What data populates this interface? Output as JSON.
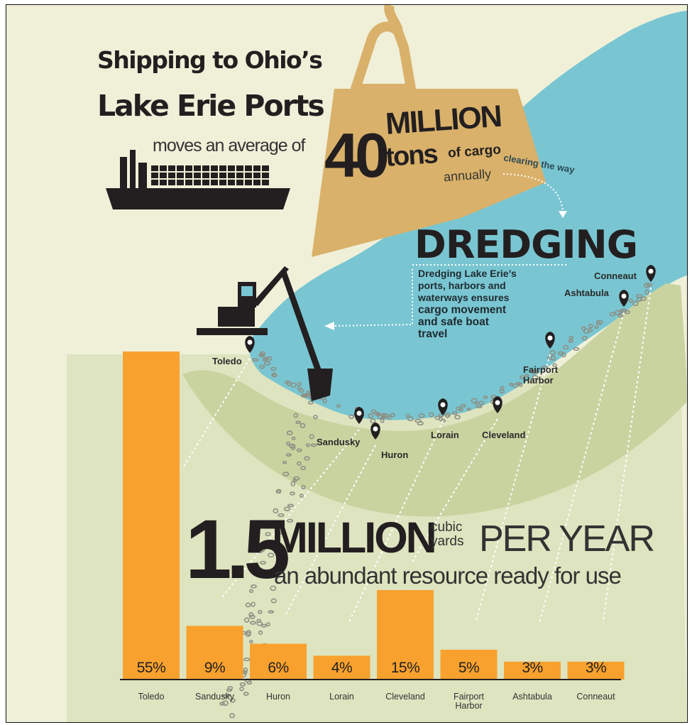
{
  "header": {
    "title_line1": "Shipping to Ohio’s",
    "title_line2": "Lake Erie Ports",
    "moves": "moves an average of",
    "big_number": "40",
    "million": "MILLION",
    "tons": "tons",
    "of_cargo": "of cargo",
    "annually": "annually",
    "clearing": "clearing the way"
  },
  "dredging": {
    "title": "DREDGING",
    "lines": [
      "Dredging Lake Erie’s",
      "ports, harbors and",
      "waterways ensures",
      "cargo movement",
      "and safe boat",
      "travel"
    ]
  },
  "volume": {
    "number": "1.5",
    "million": "MILLION",
    "cubic": "cubic",
    "yards": "yards",
    "per_year": "PER YEAR",
    "subtitle": "an abundant resource ready for use"
  },
  "colors": {
    "bar": "#f9a12e",
    "lake": "#79c6d2",
    "land": "#c9d3a0",
    "bg": "#f0f0d9",
    "weight": "#d9b16a",
    "ink": "#231f20"
  },
  "icons": [
    "ship-icon",
    "weight-icon",
    "excavator-icon",
    "map-pin-icon"
  ],
  "chart_data": {
    "type": "bar",
    "title": "",
    "xlabel": "",
    "ylabel": "",
    "categories": [
      "Toledo",
      "Sandusky",
      "Huron",
      "Lorain",
      "Cleveland",
      "Fairport Harbor",
      "Ashtabula",
      "Conneaut"
    ],
    "values": [
      55,
      9,
      6,
      4,
      15,
      5,
      3,
      3
    ],
    "value_labels": [
      "55%",
      "9%",
      "6%",
      "4%",
      "15%",
      "5%",
      "3%",
      "3%"
    ],
    "unit": "%",
    "ylim": [
      0,
      55
    ],
    "grid": false,
    "legend": "none"
  },
  "map": {
    "ports": [
      {
        "name": "Toledo"
      },
      {
        "name": "Sandusky"
      },
      {
        "name": "Huron"
      },
      {
        "name": "Lorain"
      },
      {
        "name": "Cleveland"
      },
      {
        "name": "Fairport Harbor"
      },
      {
        "name": "Ashtabula"
      },
      {
        "name": "Conneaut"
      }
    ]
  }
}
